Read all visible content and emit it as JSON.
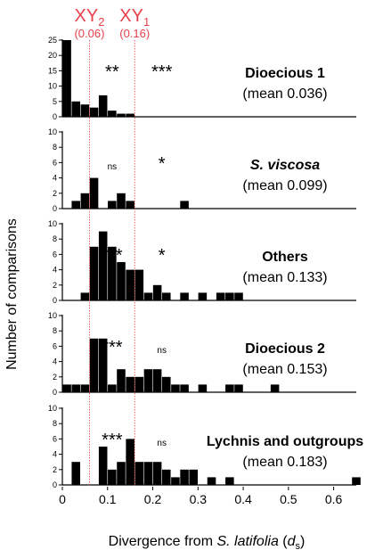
{
  "chart_data": {
    "type": "bar",
    "subtype": "stacked-panel histogram",
    "bin_width": 0.02,
    "xlabel_prefix": "Divergence from ",
    "xlabel_italic": "S. latifolia",
    "xlabel_paren_open": " (",
    "xlabel_d": "d",
    "xlabel_sub": "s",
    "xlabel_paren_close": ")",
    "ylabel": "Number of comparisons",
    "xlim": [
      0,
      0.65
    ],
    "xticks": [
      "0",
      "0.1",
      "0.2",
      "0.3",
      "0.4",
      "0.5",
      "0.6"
    ],
    "xtick_values": [
      0,
      0.1,
      0.2,
      0.3,
      0.4,
      0.5,
      0.6
    ],
    "markers": [
      {
        "label": "XY",
        "subscript": "2",
        "value_label": "(0.06)",
        "x": 0.06
      },
      {
        "label": "XY",
        "subscript": "1",
        "value_label": "(0.16)",
        "x": 0.16
      }
    ],
    "colors": {
      "bar": "#000000",
      "marker": "#e8404a",
      "axis": "#000000"
    },
    "panels": [
      {
        "title": "Dioecious 1",
        "title_italic": false,
        "mean_label": "(mean 0.036)",
        "ylim": [
          0,
          25
        ],
        "yticks": [
          "0",
          "5",
          "10",
          "15",
          "20",
          "25"
        ],
        "ytick_values": [
          0,
          5,
          10,
          15,
          20,
          25
        ],
        "bins": [
          {
            "x0": 0.0,
            "count": 25
          },
          {
            "x0": 0.02,
            "count": 5
          },
          {
            "x0": 0.04,
            "count": 4
          },
          {
            "x0": 0.06,
            "count": 3
          },
          {
            "x0": 0.08,
            "count": 7
          },
          {
            "x0": 0.1,
            "count": 2
          },
          {
            "x0": 0.12,
            "count": 1
          },
          {
            "x0": 0.14,
            "count": 1
          }
        ],
        "sig_left": "**",
        "sig_right": "***"
      },
      {
        "title": "S. viscosa",
        "title_italic": true,
        "mean_label": "(mean 0.099)",
        "ylim": [
          0,
          10
        ],
        "yticks": [
          "0",
          "2",
          "4",
          "6",
          "8",
          "10"
        ],
        "ytick_values": [
          0,
          2,
          4,
          6,
          8,
          10
        ],
        "bins": [
          {
            "x0": 0.02,
            "count": 1
          },
          {
            "x0": 0.04,
            "count": 2
          },
          {
            "x0": 0.06,
            "count": 4
          },
          {
            "x0": 0.1,
            "count": 1
          },
          {
            "x0": 0.12,
            "count": 2
          },
          {
            "x0": 0.14,
            "count": 1
          },
          {
            "x0": 0.26,
            "count": 1
          }
        ],
        "sig_left": "ns",
        "sig_right": "*"
      },
      {
        "title": "Others",
        "title_italic": false,
        "mean_label": "(mean 0.133)",
        "ylim": [
          0,
          10
        ],
        "yticks": [
          "0",
          "2",
          "4",
          "6",
          "8",
          "10"
        ],
        "ytick_values": [
          0,
          2,
          4,
          6,
          8,
          10
        ],
        "bins": [
          {
            "x0": 0.04,
            "count": 1
          },
          {
            "x0": 0.06,
            "count": 7
          },
          {
            "x0": 0.08,
            "count": 9
          },
          {
            "x0": 0.1,
            "count": 7
          },
          {
            "x0": 0.12,
            "count": 5
          },
          {
            "x0": 0.14,
            "count": 4
          },
          {
            "x0": 0.16,
            "count": 4
          },
          {
            "x0": 0.18,
            "count": 1
          },
          {
            "x0": 0.2,
            "count": 2
          },
          {
            "x0": 0.22,
            "count": 1
          },
          {
            "x0": 0.26,
            "count": 1
          },
          {
            "x0": 0.3,
            "count": 1
          },
          {
            "x0": 0.34,
            "count": 1
          },
          {
            "x0": 0.36,
            "count": 1
          },
          {
            "x0": 0.38,
            "count": 1
          }
        ],
        "sig_left": "***",
        "sig_right": "*"
      },
      {
        "title": "Dioecious 2",
        "title_italic": false,
        "mean_label": "(mean 0.153)",
        "ylim": [
          0,
          10
        ],
        "yticks": [
          "0",
          "2",
          "4",
          "6",
          "8",
          "10"
        ],
        "ytick_values": [
          0,
          2,
          4,
          6,
          8,
          10
        ],
        "bins": [
          {
            "x0": 0.0,
            "count": 1
          },
          {
            "x0": 0.02,
            "count": 1
          },
          {
            "x0": 0.04,
            "count": 1
          },
          {
            "x0": 0.06,
            "count": 7
          },
          {
            "x0": 0.08,
            "count": 7
          },
          {
            "x0": 0.1,
            "count": 1
          },
          {
            "x0": 0.12,
            "count": 3
          },
          {
            "x0": 0.14,
            "count": 2
          },
          {
            "x0": 0.16,
            "count": 2
          },
          {
            "x0": 0.18,
            "count": 3
          },
          {
            "x0": 0.2,
            "count": 3
          },
          {
            "x0": 0.22,
            "count": 2
          },
          {
            "x0": 0.24,
            "count": 1
          },
          {
            "x0": 0.26,
            "count": 1
          },
          {
            "x0": 0.3,
            "count": 1
          },
          {
            "x0": 0.36,
            "count": 1
          },
          {
            "x0": 0.38,
            "count": 1
          },
          {
            "x0": 0.46,
            "count": 1
          }
        ],
        "sig_left": "***",
        "sig_right": "ns"
      },
      {
        "title": "Lychnis and outgroups",
        "title_italic": false,
        "mean_label": "(mean 0.183)",
        "ylim": [
          0,
          10
        ],
        "yticks": [
          "0",
          "2",
          "4",
          "6",
          "8",
          "10"
        ],
        "ytick_values": [
          0,
          2,
          4,
          6,
          8,
          10
        ],
        "bins": [
          {
            "x0": 0.02,
            "count": 3
          },
          {
            "x0": 0.08,
            "count": 5
          },
          {
            "x0": 0.1,
            "count": 2
          },
          {
            "x0": 0.12,
            "count": 3
          },
          {
            "x0": 0.14,
            "count": 6
          },
          {
            "x0": 0.16,
            "count": 3
          },
          {
            "x0": 0.18,
            "count": 3
          },
          {
            "x0": 0.2,
            "count": 3
          },
          {
            "x0": 0.22,
            "count": 2
          },
          {
            "x0": 0.24,
            "count": 1
          },
          {
            "x0": 0.26,
            "count": 2
          },
          {
            "x0": 0.28,
            "count": 2
          },
          {
            "x0": 0.32,
            "count": 1
          },
          {
            "x0": 0.36,
            "count": 1
          },
          {
            "x0": 0.64,
            "count": 1
          }
        ],
        "sig_left": "***",
        "sig_right": "ns"
      }
    ]
  }
}
